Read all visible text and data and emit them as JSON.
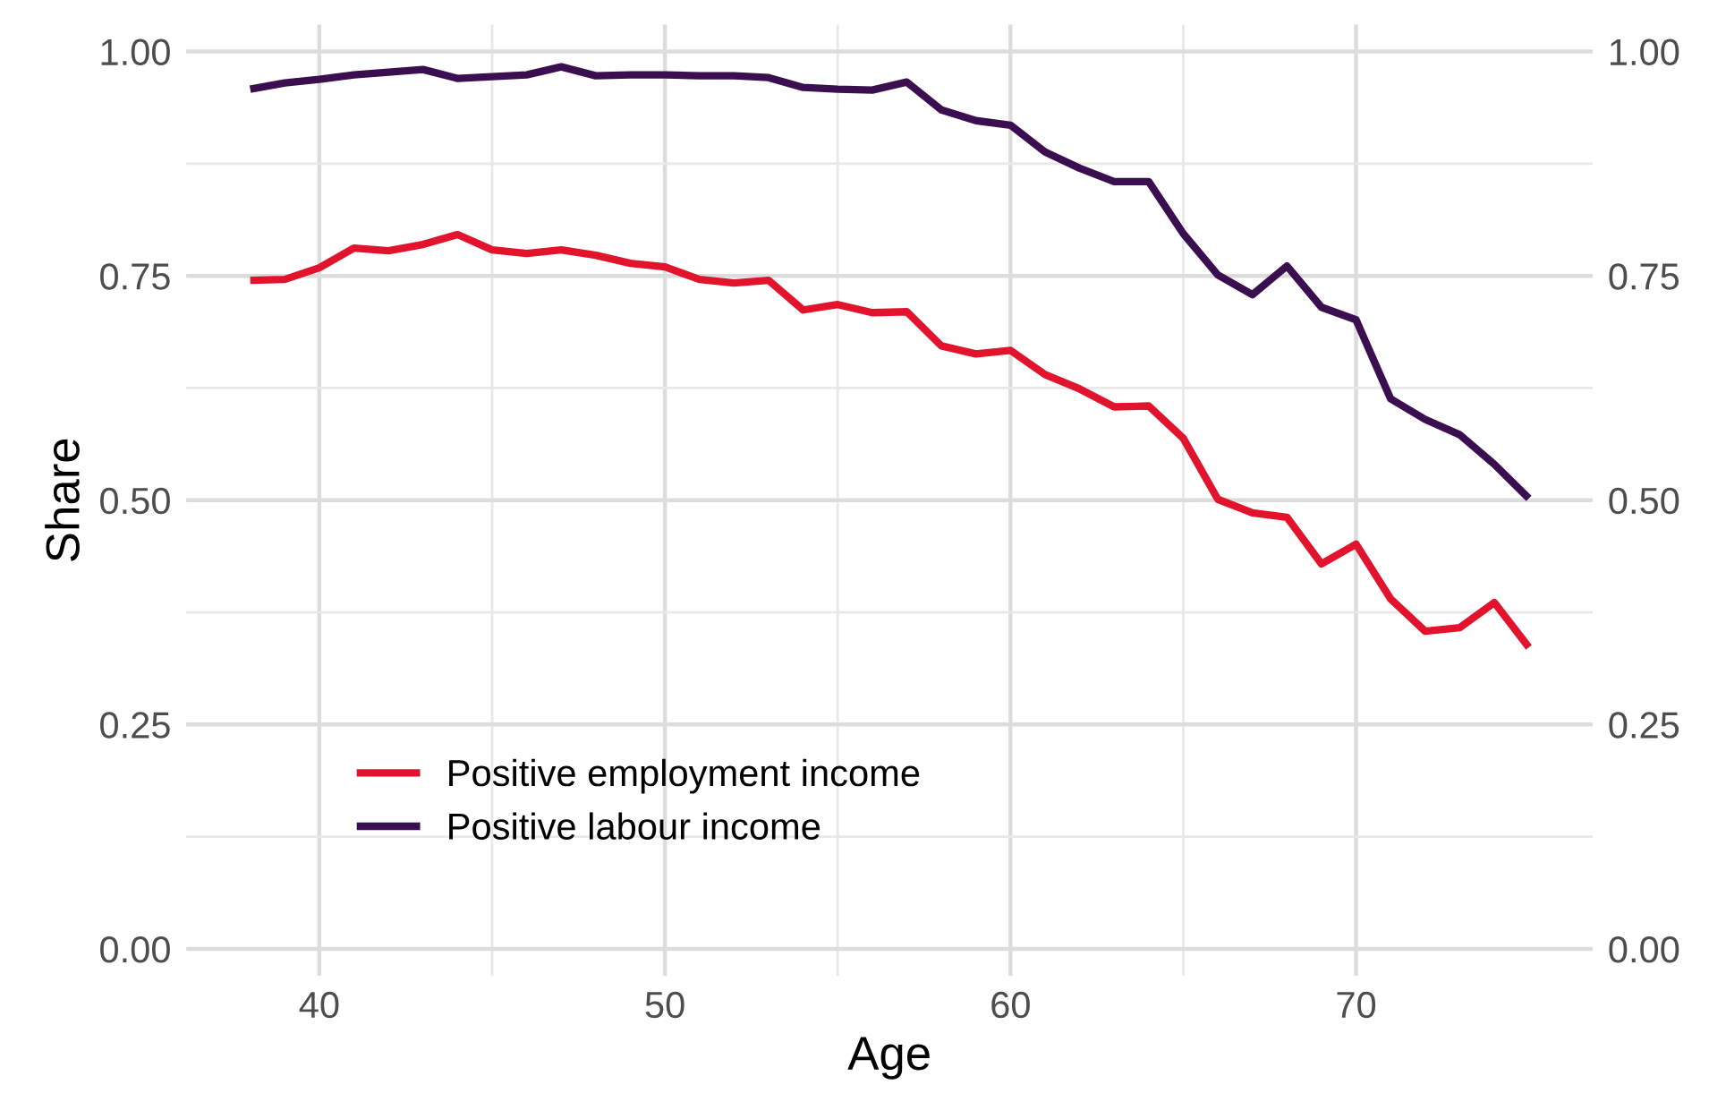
{
  "chart_data": {
    "type": "line",
    "xlabel": "Age",
    "ylabel": "Share",
    "x": [
      38,
      39,
      40,
      41,
      42,
      43,
      44,
      45,
      46,
      47,
      48,
      49,
      50,
      51,
      52,
      53,
      54,
      55,
      56,
      57,
      58,
      59,
      60,
      61,
      62,
      63,
      64,
      65,
      66,
      67,
      68,
      69,
      70,
      71,
      72,
      73,
      74,
      75
    ],
    "series": [
      {
        "name": "Positive employment income",
        "color": "#e2142d",
        "values": [
          0.745,
          0.746,
          0.759,
          0.781,
          0.778,
          0.785,
          0.796,
          0.779,
          0.775,
          0.779,
          0.773,
          0.764,
          0.76,
          0.746,
          0.742,
          0.745,
          0.712,
          0.718,
          0.709,
          0.71,
          0.672,
          0.663,
          0.667,
          0.64,
          0.624,
          0.604,
          0.605,
          0.569,
          0.501,
          0.486,
          0.481,
          0.429,
          0.451,
          0.39,
          0.354,
          0.358,
          0.386,
          0.336
        ]
      },
      {
        "name": "Positive labour income",
        "color": "#3b0f4f",
        "values": [
          0.958,
          0.965,
          0.969,
          0.974,
          0.977,
          0.98,
          0.97,
          0.972,
          0.974,
          0.983,
          0.973,
          0.974,
          0.974,
          0.973,
          0.973,
          0.971,
          0.96,
          0.958,
          0.957,
          0.966,
          0.935,
          0.923,
          0.918,
          0.888,
          0.87,
          0.855,
          0.855,
          0.797,
          0.751,
          0.729,
          0.761,
          0.715,
          0.701,
          0.613,
          0.59,
          0.573,
          0.54,
          0.502
        ]
      }
    ],
    "xlim": [
      36.15,
      76.85
    ],
    "xticks": [
      40,
      50,
      60,
      70
    ],
    "ylim": [
      -0.03,
      1.03
    ],
    "yticks": [
      {
        "value": 0,
        "label": "0.00"
      },
      {
        "value": 0.25,
        "label": "0.25"
      },
      {
        "value": 0.5,
        "label": "0.50"
      },
      {
        "value": 0.75,
        "label": "0.75"
      },
      {
        "value": 1,
        "label": "1.00"
      }
    ],
    "y2lim": [
      -0.03,
      1.03
    ],
    "y2ticks": [
      {
        "value": 0,
        "label": "0.00"
      },
      {
        "value": 0.25,
        "label": "0.25"
      },
      {
        "value": 0.5,
        "label": "0.50"
      },
      {
        "value": 0.75,
        "label": "0.75"
      },
      {
        "value": 1,
        "label": "1.00"
      }
    ],
    "grid": true,
    "legend": "bottom left",
    "line_style": "solid"
  }
}
